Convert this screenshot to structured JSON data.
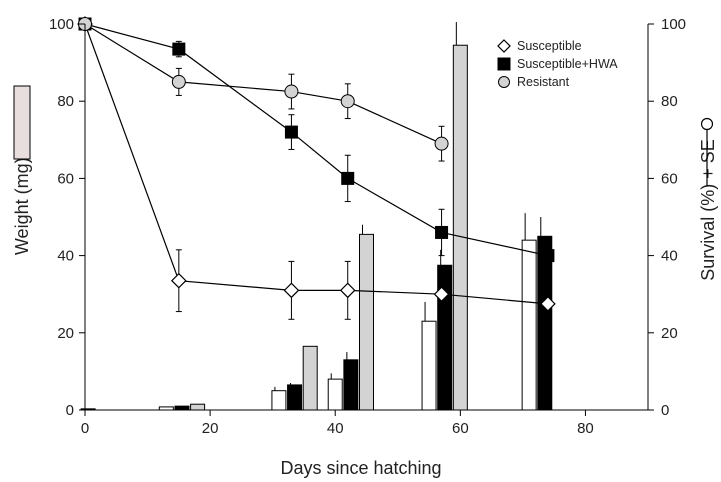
{
  "chart_data": {
    "type": "bar",
    "title": "",
    "xlabel": "Days since hatching",
    "ylabel_left": "Weight (mg) + SE",
    "ylabel_right": "Survival (%) + SE",
    "xlim": [
      0,
      90
    ],
    "ylim_left": [
      0,
      100
    ],
    "ylim_right": [
      0,
      100
    ],
    "xticks": [
      "0",
      "20",
      "40",
      "60",
      "80"
    ],
    "yticks_left": [
      "0",
      "20",
      "40",
      "60",
      "80",
      "100"
    ],
    "yticks_right": [
      "0",
      "20",
      "40",
      "60",
      "80",
      "100"
    ],
    "grid": false,
    "legend_position": "top-right",
    "legend": [
      "Susceptible",
      "Susceptible+HWA",
      "Resistant"
    ],
    "weight_bars": {
      "unit": "mg",
      "series": [
        {
          "name": "Susceptible",
          "fill": "#ffffff",
          "points": [
            {
              "day": 13,
              "value": 0.8,
              "se": null
            },
            {
              "day": 31,
              "value": 5,
              "se": 1
            },
            {
              "day": 40,
              "value": 8,
              "se": 1.5
            },
            {
              "day": 55,
              "value": 23,
              "se": 5
            },
            {
              "day": 71,
              "value": 44,
              "se": 7
            }
          ]
        },
        {
          "name": "Susceptible+HWA",
          "fill": "#000000",
          "points": [
            {
              "day": 0.5,
              "value": 0.3,
              "se": null
            },
            {
              "day": 15.5,
              "value": 1,
              "se": null
            },
            {
              "day": 33.5,
              "value": 6.5,
              "se": 0.5
            },
            {
              "day": 42.5,
              "value": 13,
              "se": 2
            },
            {
              "day": 57.5,
              "value": 37.5,
              "se": 4
            },
            {
              "day": 73.5,
              "value": 45,
              "se": 5
            }
          ]
        },
        {
          "name": "Resistant",
          "fill": "#d3d3d3",
          "points": [
            {
              "day": 18,
              "value": 1.5,
              "se": null
            },
            {
              "day": 36,
              "value": 16.5,
              "se": null
            },
            {
              "day": 45,
              "value": 45.5,
              "se": 2.5
            },
            {
              "day": 60,
              "value": 94.5,
              "se": 6
            }
          ]
        }
      ]
    },
    "survival_lines": {
      "unit": "%",
      "series": [
        {
          "name": "Susceptible",
          "marker": "diamond",
          "points": [
            {
              "day": 0,
              "value": 100,
              "se": null
            },
            {
              "day": 15,
              "value": 33.5,
              "se": 8
            },
            {
              "day": 33,
              "value": 31,
              "se": 7.5
            },
            {
              "day": 42,
              "value": 31,
              "se": 7.5
            },
            {
              "day": 57,
              "value": 30,
              "se": null
            },
            {
              "day": 74,
              "value": 27.5,
              "se": null
            }
          ]
        },
        {
          "name": "Susceptible+HWA",
          "marker": "square",
          "points": [
            {
              "day": 0,
              "value": 100,
              "se": null
            },
            {
              "day": 15,
              "value": 93.5,
              "se": 2
            },
            {
              "day": 33,
              "value": 72,
              "se": 4.5
            },
            {
              "day": 42,
              "value": 60,
              "se": 6
            },
            {
              "day": 57,
              "value": 46,
              "se": 6
            },
            {
              "day": 74,
              "value": 40,
              "se": null
            }
          ]
        },
        {
          "name": "Resistant",
          "marker": "circle",
          "points": [
            {
              "day": 0,
              "value": 100,
              "se": null
            },
            {
              "day": 15,
              "value": 85,
              "se": 3.5
            },
            {
              "day": 33,
              "value": 82.5,
              "se": 4.5
            },
            {
              "day": 42,
              "value": 80,
              "se": 4.5
            },
            {
              "day": 57,
              "value": 69,
              "se": 4.5
            }
          ]
        }
      ]
    },
    "colors": {
      "bar_white": "#ffffff",
      "bar_black": "#000000",
      "bar_gray": "#d3d3d3",
      "marker_circle": "#d3d3d3",
      "line": "#000000",
      "weight_key_swatch": "#e8dede"
    }
  }
}
